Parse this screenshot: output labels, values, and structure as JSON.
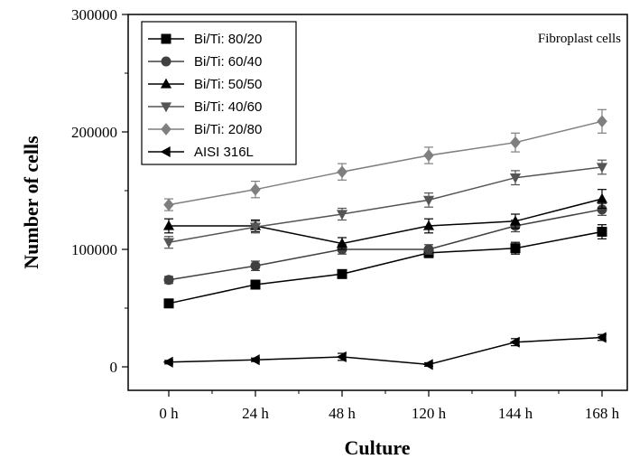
{
  "chart_data": {
    "type": "line",
    "annotation": "Fibroplast cells",
    "xlabel": "Culture",
    "ylabel": "Number of cells",
    "categories": [
      "0 h",
      "24 h",
      "48 h",
      "120 h",
      "144 h",
      "168 h"
    ],
    "ylim": [
      -20000,
      300000
    ],
    "yticks": [
      "0",
      "100000",
      "200000",
      "300000"
    ],
    "grid": false,
    "legend_position": "top-left",
    "series": [
      {
        "name": "Bi/Ti: 80/20",
        "marker": "square",
        "color": "#000000",
        "values": [
          54000,
          70000,
          79000,
          97000,
          101000,
          115000
        ],
        "errors": [
          3000,
          3000,
          3000,
          4000,
          5000,
          6000
        ]
      },
      {
        "name": "Bi/Ti: 60/40",
        "marker": "circle",
        "color": "#404040",
        "values": [
          74000,
          86000,
          100000,
          100000,
          120000,
          134000
        ],
        "errors": [
          3000,
          4000,
          4000,
          4000,
          5000,
          5000
        ]
      },
      {
        "name": "Bi/Ti: 50/50",
        "marker": "triangle-up",
        "color": "#000000",
        "values": [
          120000,
          120000,
          105000,
          120000,
          124000,
          143000
        ],
        "errors": [
          6000,
          5000,
          5000,
          6000,
          6000,
          8000
        ]
      },
      {
        "name": "Bi/Ti: 40/60",
        "marker": "triangle-down",
        "color": "#555555",
        "values": [
          106000,
          119000,
          130000,
          142000,
          161000,
          170000
        ],
        "errors": [
          5000,
          5000,
          5000,
          6000,
          6000,
          6000
        ]
      },
      {
        "name": "Bi/Ti: 20/80",
        "marker": "diamond",
        "color": "#7f7f7f",
        "values": [
          138000,
          151000,
          166000,
          180000,
          191000,
          209000
        ],
        "errors": [
          5000,
          7000,
          7000,
          7000,
          8000,
          10000
        ]
      },
      {
        "name": "AISI 316L",
        "marker": "triangle-left",
        "color": "#000000",
        "values": [
          4000,
          6000,
          8500,
          2000,
          21000,
          25000
        ],
        "errors": [
          1500,
          1500,
          3000,
          1500,
          3000,
          2500
        ]
      }
    ]
  }
}
